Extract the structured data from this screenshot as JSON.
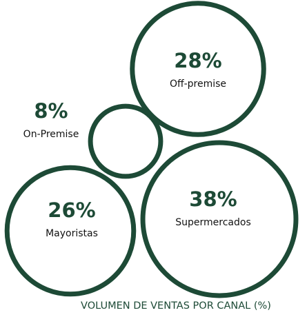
{
  "chart_data": {
    "type": "bubble",
    "title": "VOLUMEN DE VENTAS POR CANAL (%)",
    "categories": [
      "Off-premise",
      "On-Premise",
      "Mayoristas",
      "Supermercados"
    ],
    "values": [
      28,
      8,
      26,
      38
    ],
    "value_labels": [
      "28%",
      "8%",
      "26%",
      "38%"
    ],
    "color": "#1d4a36"
  }
}
